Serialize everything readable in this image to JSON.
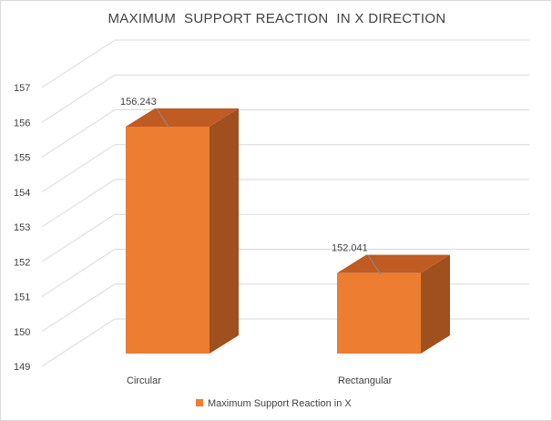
{
  "chart_data": {
    "type": "bar",
    "title": "MAXIMUM  SUPPORT REACTION  IN X DIRECTION",
    "categories": [
      "Circular",
      "Rectangular"
    ],
    "series": [
      {
        "name": "Maximum Support Reaction in X",
        "values": [
          156.243,
          152.041
        ],
        "data_labels": [
          "156.243",
          "152.041"
        ]
      }
    ],
    "yticks": [
      149,
      150,
      151,
      152,
      153,
      154,
      155,
      156,
      157
    ],
    "ylim": [
      149,
      157
    ],
    "grid": true,
    "legend_position": "bottom",
    "colors": {
      "front": "#ed7d31",
      "side": "#a0501e",
      "top": "#bf5b23",
      "grid": "#d9d9d9",
      "text": "#404040"
    }
  }
}
